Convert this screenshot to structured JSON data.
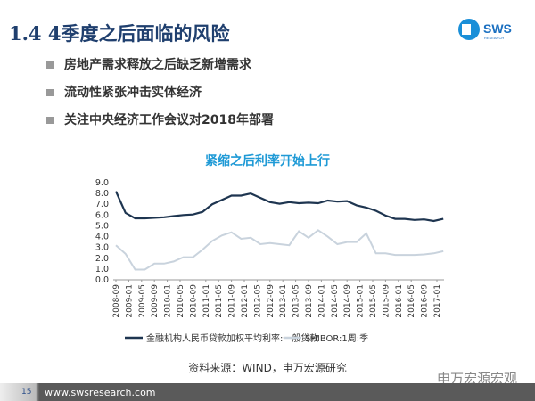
{
  "header": {
    "title": "1.4 4季度之后面临的风险",
    "logo_text": "SWS",
    "logo_sub": "RESEARCH"
  },
  "bullets": [
    "房地产需求释放之后缺乏新增需求",
    "流动性紧张冲击实体经济",
    "关注中央经济工作会议对2018年部署"
  ],
  "chart_data": {
    "type": "line",
    "title": "紧缩之后利率开始上行",
    "ylim": [
      0,
      9
    ],
    "yticks": [
      "0.0",
      "1.0",
      "2.0",
      "3.0",
      "4.0",
      "5.0",
      "6.0",
      "7.0",
      "8.0",
      "9.0"
    ],
    "xticks": [
      "2008-09",
      "2009-01",
      "2009-05",
      "2009-09",
      "2010-01",
      "2010-05",
      "2010-09",
      "2011-01",
      "2011-05",
      "2011-09",
      "2012-01",
      "2012-05",
      "2012-09",
      "2013-01",
      "2013-05",
      "2013-09",
      "2014-01",
      "2014-05",
      "2014-09",
      "2015-01",
      "2015-05",
      "2015-09",
      "2016-01",
      "2016-05",
      "2016-09",
      "2017-01"
    ],
    "x_frequency": "quarterly from 2008-09",
    "series": [
      {
        "name": "金融机构人民币贷款加权平均利率:一般贷款",
        "color": "#1e3550",
        "values": [
          8.2,
          6.2,
          5.7,
          5.7,
          5.75,
          5.8,
          5.9,
          6.0,
          6.05,
          6.3,
          7.0,
          7.4,
          7.8,
          7.8,
          8.0,
          7.6,
          7.2,
          7.05,
          7.2,
          7.1,
          7.15,
          7.1,
          7.35,
          7.25,
          7.3,
          6.9,
          6.7,
          6.4,
          5.95,
          5.65,
          5.65,
          5.55,
          5.6,
          5.45,
          5.65
        ]
      },
      {
        "name": "SHIBOR:1周:季",
        "color": "#c9d3dd",
        "values": [
          3.2,
          2.4,
          0.95,
          0.95,
          1.5,
          1.5,
          1.7,
          2.1,
          2.1,
          2.8,
          3.6,
          4.1,
          4.4,
          3.8,
          3.9,
          3.3,
          3.4,
          3.3,
          3.2,
          4.5,
          3.9,
          4.6,
          4.0,
          3.3,
          3.5,
          3.5,
          4.3,
          2.45,
          2.45,
          2.3,
          2.3,
          2.3,
          2.35,
          2.45,
          2.65
        ]
      }
    ],
    "legend": "bottom"
  },
  "source": "资料来源：WIND，申万宏源研究",
  "footer": {
    "page": "15",
    "url": "www.swsresearch.com",
    "watermark": "申万宏源宏观"
  }
}
